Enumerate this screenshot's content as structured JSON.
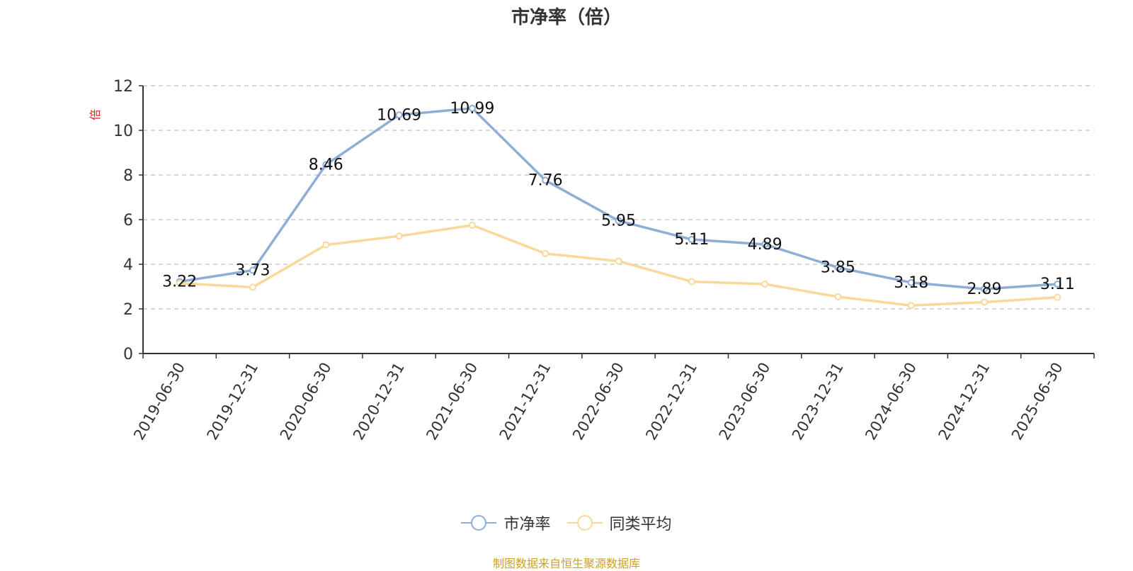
{
  "chart_data": {
    "type": "line",
    "title": "市净率（倍）",
    "ylabel": "倍",
    "ylim": [
      0,
      12
    ],
    "yticks": [
      0,
      2,
      4,
      6,
      8,
      10,
      12
    ],
    "categories": [
      "2019-06-30",
      "2019-12-31",
      "2020-06-30",
      "2020-12-31",
      "2021-06-30",
      "2021-12-31",
      "2022-06-30",
      "2022-12-31",
      "2023-06-30",
      "2023-12-31",
      "2024-06-30",
      "2024-12-31",
      "2025-06-30"
    ],
    "series": [
      {
        "name": "市净率",
        "color": "#8eaed8",
        "values": [
          3.22,
          3.73,
          8.46,
          10.69,
          10.99,
          7.76,
          5.95,
          5.11,
          4.89,
          3.85,
          3.18,
          2.89,
          3.11
        ],
        "show_labels": true
      },
      {
        "name": "同类平均",
        "color": "#f9d89a",
        "values": [
          3.15,
          2.97,
          4.87,
          5.26,
          5.75,
          4.48,
          4.14,
          3.22,
          3.11,
          2.54,
          2.15,
          2.3,
          2.52
        ],
        "show_labels": false
      }
    ],
    "grid": true,
    "legend_position": "bottom-center"
  },
  "source": "制图数据来自恒生聚源数据库"
}
